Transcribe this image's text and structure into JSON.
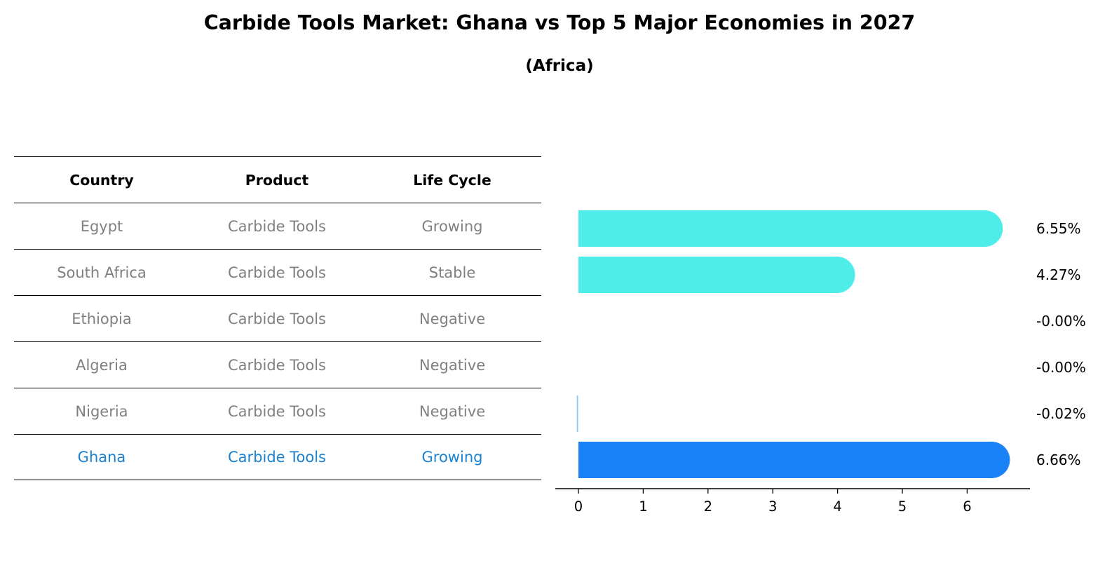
{
  "title": "Carbide Tools Market: Ghana vs Top 5 Major Economies in 2027",
  "subtitle": "(Africa)",
  "table": {
    "headers": [
      "Country",
      "Product",
      "Life Cycle"
    ],
    "rows": [
      {
        "country": "Egypt",
        "product": "Carbide Tools",
        "life_cycle": "Growing"
      },
      {
        "country": "South Africa",
        "product": "Carbide Tools",
        "life_cycle": "Stable"
      },
      {
        "country": "Ethiopia",
        "product": "Carbide Tools",
        "life_cycle": "Negative"
      },
      {
        "country": "Algeria",
        "product": "Carbide Tools",
        "life_cycle": "Negative"
      },
      {
        "country": "Nigeria",
        "product": "Carbide Tools",
        "life_cycle": "Negative"
      },
      {
        "country": "Ghana",
        "product": "Carbide Tools",
        "life_cycle": "Growing"
      }
    ]
  },
  "chart_data": {
    "type": "bar",
    "orientation": "horizontal",
    "categories": [
      "Egypt",
      "South Africa",
      "Ethiopia",
      "Algeria",
      "Nigeria",
      "Ghana"
    ],
    "values": [
      6.55,
      4.27,
      -0.0,
      -0.0,
      -0.02,
      6.66
    ],
    "value_labels": [
      "6.55%",
      "4.27%",
      "-0.00%",
      "-0.00%",
      "-0.02%",
      "6.66%"
    ],
    "xlim": [
      -0.36,
      6.99
    ],
    "xticks": [
      "0",
      "1",
      "2",
      "3",
      "4",
      "5",
      "6"
    ],
    "highlight": "Ghana",
    "colors": {
      "default": "#4eede9",
      "highlight": "#1a82f7",
      "negative": "#87cefa"
    },
    "grid": false
  },
  "colors": {
    "highlight_text": "#1a82d1",
    "muted_text": "#808080"
  }
}
